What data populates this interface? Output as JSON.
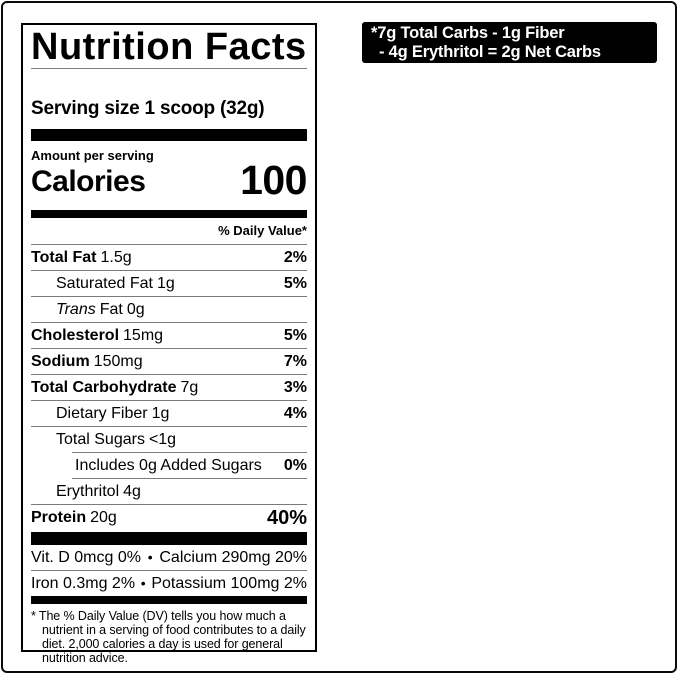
{
  "colors": {
    "ink": "#000000",
    "hairline": "#7a7a7a",
    "badge_bg": "#000000",
    "badge_text": "#ffffff",
    "background": "#ffffff"
  },
  "badge": {
    "line1": "*7g Total Carbs - 1g Fiber",
    "line2": "- 4g Erythritol = 2g Net Carbs"
  },
  "label": {
    "title": "Nutrition Facts",
    "serving_size": "Serving size 1 scoop (32g)",
    "amount_per_serving": "Amount per serving",
    "calories": {
      "label": "Calories",
      "value": "100"
    },
    "daily_value_header": "% Daily Value*",
    "rows": [
      {
        "name": "Total Fat",
        "amount": "1.5g",
        "dv": "2%"
      },
      {
        "name": "Saturated Fat",
        "amount": "1g",
        "dv": "5%"
      },
      {
        "name_italic": "Trans",
        "name": "Fat",
        "amount": "0g",
        "dv": ""
      },
      {
        "name": "Cholesterol",
        "amount": "15mg",
        "dv": "5%"
      },
      {
        "name": "Sodium",
        "amount": "150mg",
        "dv": "7%"
      },
      {
        "name": "Total Carbohydrate",
        "amount": "7g",
        "dv": "3%"
      },
      {
        "name": "Dietary Fiber",
        "amount": "1g",
        "dv": "4%"
      },
      {
        "name": "Total Sugars",
        "amount": "<1g",
        "dv": ""
      },
      {
        "name": "Includes 0g Added Sugars",
        "amount": "",
        "dv": "0%"
      },
      {
        "name": "Erythritol",
        "amount": "4g",
        "dv": ""
      },
      {
        "name": "Protein",
        "amount": "20g",
        "dv": "40%"
      }
    ],
    "micronutrients": {
      "bullet": "•",
      "row1": {
        "left": "Vit. D 0mcg 0%",
        "right": "Calcium 290mg 20%"
      },
      "row2": {
        "left": "Iron 0.3mg 2%",
        "right": "Potassium 100mg 2%"
      }
    },
    "footnote": {
      "marker": "*",
      "text": "The % Daily Value (DV) tells you how much a nutrient in a serving of food contributes to a daily diet. 2,000 calories a day is used for general nutrition advice."
    }
  }
}
